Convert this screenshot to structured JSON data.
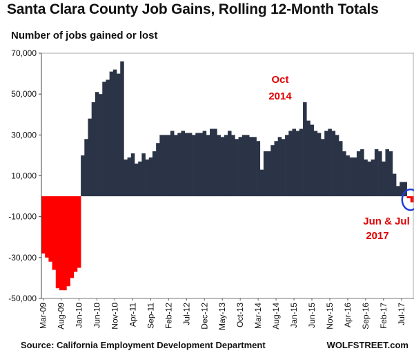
{
  "chart_data": {
    "type": "bar",
    "title": "Santa Clara County Job Gains, Rolling 12-Month Totals",
    "ylabel": "Number of jobs gained or lost",
    "ylim": [
      -50000,
      70000
    ],
    "yticks": [
      {
        "value": 70000,
        "label": "70,000"
      },
      {
        "value": 50000,
        "label": "50,000"
      },
      {
        "value": 30000,
        "label": "30,000"
      },
      {
        "value": 10000,
        "label": "10,000"
      },
      {
        "value": -10000,
        "label": "-10,000"
      },
      {
        "value": -30000,
        "label": "-30,000"
      },
      {
        "value": -50000,
        "label": "-50,000"
      }
    ],
    "x_tick_labels": [
      {
        "index": 0,
        "label": "Mar-09"
      },
      {
        "index": 5,
        "label": "Aug-09"
      },
      {
        "index": 10,
        "label": "Jan-10"
      },
      {
        "index": 15,
        "label": "Jun-10"
      },
      {
        "index": 20,
        "label": "Nov-10"
      },
      {
        "index": 25,
        "label": "Apr-11"
      },
      {
        "index": 30,
        "label": "Sep-11"
      },
      {
        "index": 35,
        "label": "Feb-12"
      },
      {
        "index": 40,
        "label": "Jul-12"
      },
      {
        "index": 45,
        "label": "Dec-12"
      },
      {
        "index": 50,
        "label": "May-13"
      },
      {
        "index": 55,
        "label": "Oct-13"
      },
      {
        "index": 60,
        "label": "Mar-14"
      },
      {
        "index": 65,
        "label": "Aug-14"
      },
      {
        "index": 70,
        "label": "Jan-15"
      },
      {
        "index": 75,
        "label": "Jun-15"
      },
      {
        "index": 80,
        "label": "Nov-15"
      },
      {
        "index": 85,
        "label": "Apr-16"
      },
      {
        "index": 90,
        "label": "Sep-16"
      },
      {
        "index": 95,
        "label": "Feb-17"
      },
      {
        "index": 100,
        "label": "Jul-17"
      }
    ],
    "series": [
      {
        "values": [
          -28000,
          -30000,
          -32000,
          -36000,
          -45000,
          -46000,
          -46000,
          -44000,
          -40000,
          -37000,
          -35000,
          20000,
          28000,
          38000,
          46000,
          51000,
          50000,
          56000,
          57000,
          61000,
          62000,
          60000,
          66000,
          18000,
          19000,
          21000,
          16000,
          17000,
          21000,
          18000,
          19000,
          22000,
          26000,
          30000,
          30000,
          30000,
          32000,
          30000,
          31000,
          32000,
          31000,
          31000,
          30000,
          31000,
          31000,
          32000,
          30000,
          33000,
          33000,
          30000,
          29000,
          30000,
          32000,
          30000,
          28000,
          29000,
          30000,
          30000,
          29000,
          29000,
          27000,
          13000,
          22000,
          22000,
          25000,
          27000,
          29000,
          28000,
          30000,
          32000,
          33000,
          32000,
          33000,
          46000,
          37000,
          35000,
          32000,
          31000,
          28000,
          32000,
          33000,
          32000,
          30000,
          27000,
          22000,
          20000,
          19000,
          19000,
          22000,
          23000,
          18000,
          17000,
          18000,
          23000,
          22000,
          17000,
          23000,
          22000,
          11000,
          5000,
          7000,
          7000,
          -1000,
          -3000
        ]
      }
    ],
    "colors": {
      "positive": "#2b3447",
      "negative": "#ff0000",
      "annotation": "#e00000",
      "highlight_circle": "#1f3fd6"
    },
    "annotations": [
      {
        "text": "Oct",
        "color": "#e00000"
      },
      {
        "text": "2014",
        "color": "#e00000"
      },
      {
        "text": "Jun & Jul",
        "color": "#e00000"
      },
      {
        "text": "2017",
        "color": "#e00000"
      }
    ],
    "grid": false,
    "legend": "none"
  },
  "header": {
    "title": "Santa Clara County Job Gains, Rolling 12-Month Totals",
    "subtitle": "Number of jobs gained or lost"
  },
  "footer": {
    "source": "Source: California Employment Development Department",
    "brand": "WOLFSTREET.com"
  }
}
